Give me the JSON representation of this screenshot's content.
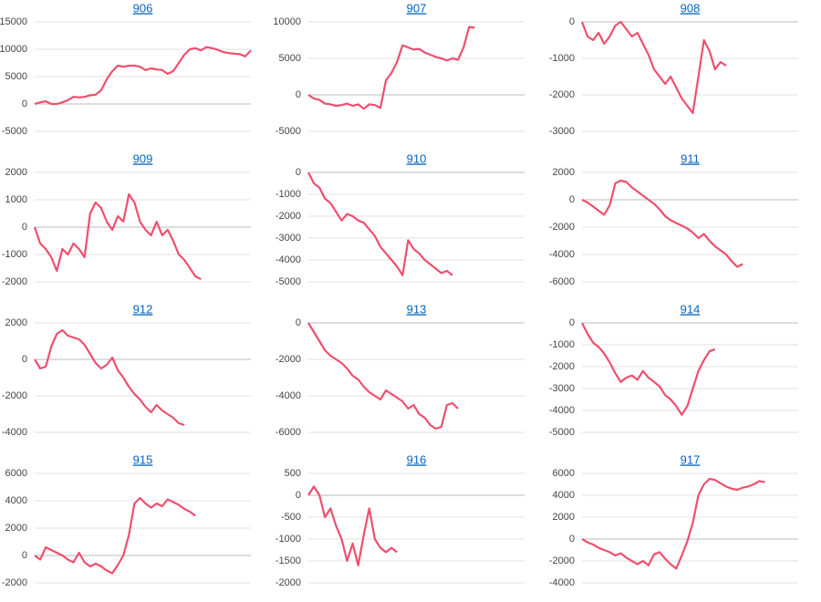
{
  "chart_data": [
    {
      "type": "line",
      "title": "906",
      "color": "#ee4f6e",
      "ylim": [
        -5000,
        15000
      ],
      "yticks": [
        -5000,
        0,
        5000,
        10000,
        15000
      ],
      "grid": true,
      "values": [
        0,
        300,
        500,
        0,
        0,
        300,
        700,
        1300,
        1200,
        1300,
        1600,
        1700,
        2500,
        4500,
        6000,
        7000,
        6800,
        7000,
        7000,
        6800,
        6200,
        6500,
        6300,
        6200,
        5500,
        6000,
        7500,
        9000,
        10000,
        10200,
        9800,
        10400,
        10200,
        9900,
        9500,
        9300,
        9200,
        9100,
        8700,
        9800
      ]
    },
    {
      "type": "line",
      "title": "907",
      "color": "#ee4f6e",
      "ylim": [
        -5000,
        10000
      ],
      "yticks": [
        -5000,
        0,
        5000,
        10000
      ],
      "grid": true,
      "values": [
        0,
        -500,
        -700,
        -1200,
        -1300,
        -1500,
        -1400,
        -1200,
        -1500,
        -1300,
        -1900,
        -1300,
        -1400,
        -1800,
        2000,
        3000,
        4500,
        6800,
        6500,
        6200,
        6300,
        5800,
        5500,
        5200,
        5000,
        4700,
        5000,
        4800,
        6500,
        9300,
        9200
      ]
    },
    {
      "type": "line",
      "title": "908",
      "color": "#ee4f6e",
      "ylim": [
        -3000,
        0
      ],
      "yticks": [
        -3000,
        -2000,
        -1000,
        0
      ],
      "grid": true,
      "values": [
        0,
        -400,
        -500,
        -300,
        -600,
        -400,
        -100,
        0,
        -200,
        -400,
        -300,
        -600,
        -900,
        -1300,
        -1500,
        -1700,
        -1500,
        -1800,
        -2100,
        -2300,
        -2500,
        -1500,
        -500,
        -800,
        -1300,
        -1100,
        -1200
      ]
    },
    {
      "type": "line",
      "title": "909",
      "color": "#ee4f6e",
      "ylim": [
        -2000,
        2000
      ],
      "yticks": [
        -2000,
        -1000,
        0,
        1000,
        2000
      ],
      "grid": true,
      "values": [
        0,
        -600,
        -800,
        -1100,
        -1600,
        -800,
        -1000,
        -600,
        -800,
        -1100,
        500,
        900,
        700,
        200,
        -100,
        400,
        200,
        1200,
        900,
        200,
        -100,
        -300,
        200,
        -300,
        -100,
        -500,
        -1000,
        -1200,
        -1500,
        -1800,
        -1900
      ]
    },
    {
      "type": "line",
      "title": "910",
      "color": "#ee4f6e",
      "ylim": [
        -5000,
        0
      ],
      "yticks": [
        -5000,
        -4000,
        -3000,
        -2000,
        -1000,
        0
      ],
      "grid": true,
      "values": [
        0,
        -500,
        -700,
        -1200,
        -1400,
        -1800,
        -2200,
        -1900,
        -2000,
        -2200,
        -2300,
        -2600,
        -2900,
        -3400,
        -3700,
        -4000,
        -4300,
        -4700,
        -3100,
        -3500,
        -3700,
        -4000,
        -4200,
        -4400,
        -4600,
        -4500,
        -4700
      ]
    },
    {
      "type": "line",
      "title": "911",
      "color": "#ee4f6e",
      "ylim": [
        -6000,
        2000
      ],
      "yticks": [
        -6000,
        -4000,
        -2000,
        0,
        2000
      ],
      "grid": true,
      "values": [
        0,
        -200,
        -500,
        -800,
        -1100,
        -400,
        1200,
        1400,
        1300,
        900,
        600,
        300,
        0,
        -300,
        -700,
        -1200,
        -1500,
        -1700,
        -1900,
        -2100,
        -2400,
        -2800,
        -2500,
        -3000,
        -3400,
        -3700,
        -4000,
        -4500,
        -4900,
        -4700
      ]
    },
    {
      "type": "line",
      "title": "912",
      "color": "#ee4f6e",
      "ylim": [
        -4000,
        2000
      ],
      "yticks": [
        -4000,
        -2000,
        0,
        2000
      ],
      "grid": true,
      "values": [
        0,
        -500,
        -400,
        700,
        1400,
        1600,
        1300,
        1200,
        1100,
        800,
        300,
        -200,
        -500,
        -300,
        100,
        -600,
        -1000,
        -1500,
        -1900,
        -2200,
        -2600,
        -2900,
        -2500,
        -2800,
        -3000,
        -3200,
        -3500,
        -3600
      ]
    },
    {
      "type": "line",
      "title": "913",
      "color": "#ee4f6e",
      "ylim": [
        -6000,
        0
      ],
      "yticks": [
        -6000,
        -4000,
        -2000,
        0
      ],
      "grid": true,
      "values": [
        0,
        -500,
        -1000,
        -1500,
        -1800,
        -2000,
        -2200,
        -2500,
        -2900,
        -3100,
        -3500,
        -3800,
        -4000,
        -4200,
        -3700,
        -3900,
        -4100,
        -4300,
        -4700,
        -4500,
        -5000,
        -5200,
        -5600,
        -5800,
        -5700,
        -4500,
        -4400,
        -4700
      ]
    },
    {
      "type": "line",
      "title": "914",
      "color": "#ee4f6e",
      "ylim": [
        -5000,
        0
      ],
      "yticks": [
        -5000,
        -4000,
        -3000,
        -2000,
        -1000,
        0
      ],
      "grid": true,
      "values": [
        0,
        -500,
        -900,
        -1100,
        -1400,
        -1800,
        -2300,
        -2700,
        -2500,
        -2400,
        -2600,
        -2200,
        -2500,
        -2700,
        -2900,
        -3300,
        -3500,
        -3800,
        -4200,
        -3800,
        -3000,
        -2200,
        -1700,
        -1300,
        -1200
      ]
    },
    {
      "type": "line",
      "title": "915",
      "color": "#ee4f6e",
      "ylim": [
        -2000,
        6000
      ],
      "yticks": [
        -2000,
        0,
        2000,
        4000,
        6000
      ],
      "grid": true,
      "values": [
        0,
        -300,
        600,
        400,
        200,
        0,
        -300,
        -500,
        200,
        -500,
        -800,
        -600,
        -800,
        -1100,
        -1300,
        -700,
        0,
        1500,
        3800,
        4200,
        3800,
        3500,
        3800,
        3600,
        4100,
        3900,
        3700,
        3400,
        3200,
        2900
      ]
    },
    {
      "type": "line",
      "title": "916",
      "color": "#ee4f6e",
      "ylim": [
        -2000,
        500
      ],
      "yticks": [
        -2000,
        -1500,
        -1000,
        -500,
        0,
        500
      ],
      "grid": true,
      "values": [
        0,
        200,
        0,
        -500,
        -300,
        -700,
        -1000,
        -1500,
        -1100,
        -1600,
        -900,
        -300,
        -1000,
        -1200,
        -1300,
        -1200,
        -1300
      ]
    },
    {
      "type": "line",
      "title": "917",
      "color": "#ee4f6e",
      "ylim": [
        -4000,
        6000
      ],
      "yticks": [
        -4000,
        -2000,
        0,
        2000,
        4000,
        6000
      ],
      "grid": true,
      "values": [
        0,
        -300,
        -500,
        -800,
        -1000,
        -1200,
        -1500,
        -1300,
        -1700,
        -2000,
        -2300,
        -2000,
        -2400,
        -1400,
        -1200,
        -1800,
        -2300,
        -2700,
        -1500,
        -200,
        1500,
        4000,
        5000,
        5500,
        5400,
        5100,
        4800,
        4600,
        4500,
        4700,
        4800,
        5000,
        5300,
        5200
      ]
    }
  ]
}
